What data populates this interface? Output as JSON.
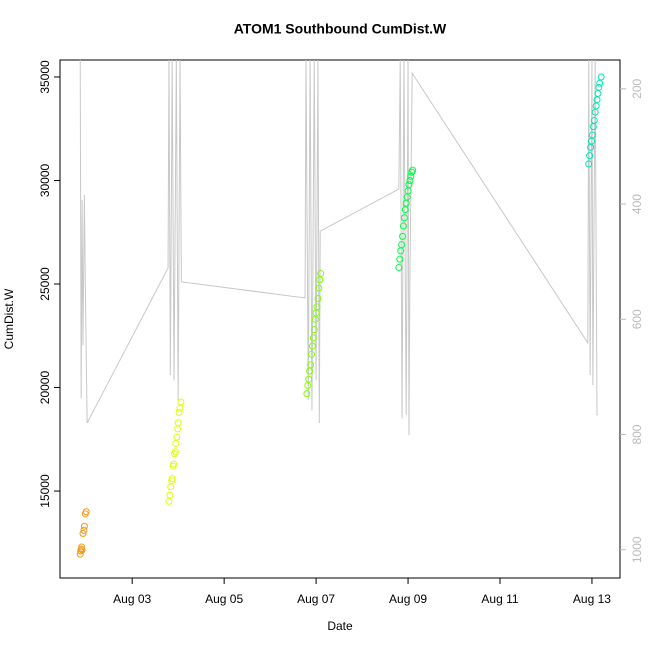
{
  "chart_data": {
    "type": "scatter",
    "title": "ATOM1 Southbound CumDist.W",
    "x_label": "Date",
    "y_label": "CumDist.W",
    "xlim": [
      1.43,
      13.61
    ],
    "xticks": [
      {
        "value": 3,
        "label": "Aug 03"
      },
      {
        "value": 5,
        "label": "Aug 05"
      },
      {
        "value": 7,
        "label": "Aug 07"
      },
      {
        "value": 9,
        "label": "Aug 09"
      },
      {
        "value": 11,
        "label": "Aug 11"
      },
      {
        "value": 13,
        "label": "Aug 13"
      }
    ],
    "ylim": [
      10800,
      35820
    ],
    "yticks": [
      15000,
      20000,
      25000,
      30000,
      35000
    ],
    "y2lim": [
      1049,
      150
    ],
    "y2ticks": [
      200,
      400,
      600,
      800,
      1000
    ],
    "series": [
      {
        "color": "#f39a1a",
        "x": [
          1.87,
          1.88,
          1.89,
          1.9,
          1.91,
          1.93,
          1.95,
          1.96,
          1.98,
          2.0
        ],
        "values": [
          11950,
          12100,
          12200,
          12300,
          12150,
          12950,
          13100,
          13300,
          13900,
          14000
        ]
      },
      {
        "color": "#ddff00",
        "x": [
          3.8,
          3.82,
          3.84,
          3.86,
          3.87,
          3.89,
          3.9,
          3.92,
          3.94,
          3.95,
          3.97,
          3.99,
          4.0,
          4.02,
          4.04,
          4.06
        ],
        "values": [
          14500,
          14800,
          15200,
          15500,
          15600,
          16200,
          16300,
          16800,
          16900,
          17300,
          17600,
          18000,
          18300,
          18800,
          19000,
          19300
        ]
      },
      {
        "color": "#80ff00",
        "x": [
          6.8,
          6.82,
          6.84,
          6.86,
          6.88,
          6.9,
          6.92,
          6.94,
          6.96,
          6.98,
          7.0,
          7.02,
          7.04,
          7.06,
          7.08,
          7.1
        ],
        "values": [
          19700,
          20100,
          20400,
          20800,
          21100,
          21600,
          22000,
          22400,
          22800,
          23300,
          23600,
          23900,
          24300,
          24800,
          25200,
          25500
        ]
      },
      {
        "color": "#00ff44",
        "x": [
          8.8,
          8.82,
          8.84,
          8.86,
          8.88,
          8.9,
          8.92,
          8.94,
          8.96,
          8.98,
          9.0,
          9.02,
          9.04,
          9.06,
          9.08,
          9.1
        ],
        "values": [
          25800,
          26200,
          26600,
          26900,
          27300,
          27800,
          28200,
          28600,
          28900,
          29200,
          29500,
          29800,
          30000,
          30200,
          30400,
          30500
        ]
      },
      {
        "color": "#00e6b0",
        "x": [
          12.93,
          12.95,
          12.97,
          12.99,
          13.01,
          13.03,
          13.05,
          13.07,
          13.09,
          13.11,
          13.13,
          13.15,
          13.17,
          13.2
        ],
        "values": [
          30800,
          31200,
          31600,
          31900,
          32200,
          32600,
          32900,
          33300,
          33600,
          33900,
          34200,
          34500,
          34700,
          35000
        ]
      },
      {
        "type": "line",
        "axis": "y2",
        "color": "#c8c8c8",
        "x": [
          1.87,
          1.89,
          1.91,
          1.93,
          1.96,
          1.98,
          2.02,
          3.78,
          3.8,
          3.83,
          3.87,
          3.91,
          3.96,
          4.0,
          4.04,
          4.07,
          6.76,
          6.78,
          6.83,
          6.87,
          6.91,
          6.96,
          7.0,
          7.04,
          7.07,
          7.09,
          8.8,
          8.83,
          8.87,
          8.91,
          8.96,
          9.0,
          9.02,
          9.04,
          9.09,
          12.91,
          12.93,
          12.96,
          13.0,
          13.02,
          13.07,
          13.11,
          13.13
        ],
        "values": [
          150,
          737,
          393,
          645,
          384,
          532,
          780,
          511,
          150,
          697,
          150,
          706,
          150,
          740,
          150,
          535,
          563,
          150,
          740,
          150,
          758,
          150,
          706,
          150,
          780,
          447,
          374,
          150,
          772,
          150,
          766,
          150,
          801,
          532,
          173,
          641,
          150,
          697,
          150,
          714,
          150,
          766,
          766
        ]
      }
    ]
  }
}
